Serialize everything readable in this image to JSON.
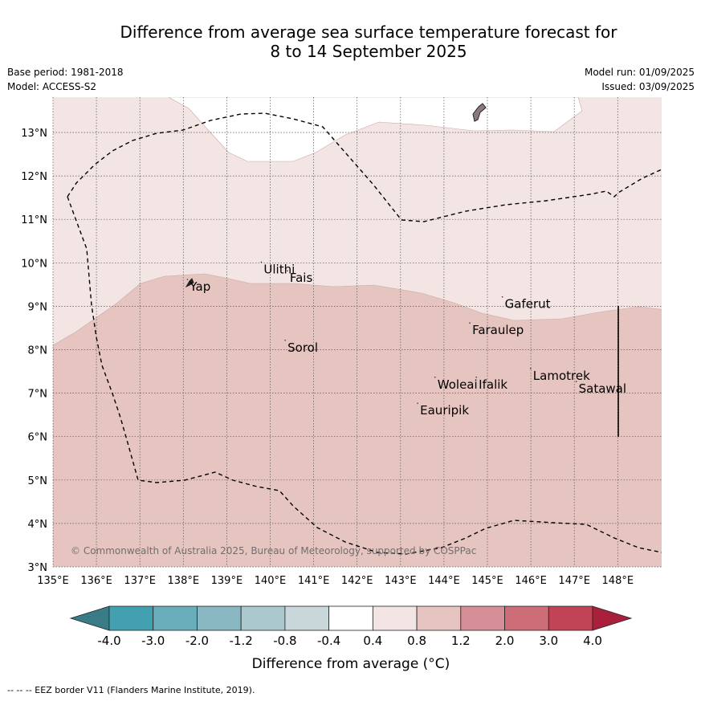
{
  "title": {
    "line1": "Difference from average sea surface temperature forecast for",
    "line2": "8 to 14 September 2025"
  },
  "meta": {
    "base_period": "Base period: 1981-2018",
    "model": "Model: ACCESS-S2",
    "model_run": "Model run: 01/09/2025",
    "issued": "Issued: 03/09/2025"
  },
  "map": {
    "lon_range": [
      135,
      149
    ],
    "lat_range": [
      3,
      13.8
    ],
    "lon_ticks": [
      "135°E",
      "136°E",
      "137°E",
      "138°E",
      "139°E",
      "140°E",
      "141°E",
      "142°E",
      "143°E",
      "144°E",
      "145°E",
      "146°E",
      "147°E",
      "148°E"
    ],
    "lat_ticks": [
      "3°N",
      "4°N",
      "5°N",
      "6°N",
      "7°N",
      "8°N",
      "9°N",
      "10°N",
      "11°N",
      "12°N",
      "13°N"
    ],
    "grid": true,
    "copyright": "© Commonwealth of Australia 2025, Bureau of Meteorology, supported by COSPPac",
    "places": [
      {
        "name": "Ulithi",
        "lon": 139.85,
        "lat": 9.85
      },
      {
        "name": "Fais",
        "lon": 140.45,
        "lat": 9.65
      },
      {
        "name": "Yap",
        "lon": 138.15,
        "lat": 9.45
      },
      {
        "name": "Gaferut",
        "lon": 145.4,
        "lat": 9.05
      },
      {
        "name": "Faraulep",
        "lon": 144.65,
        "lat": 8.45
      },
      {
        "name": "Sorol",
        "lon": 140.4,
        "lat": 8.05
      },
      {
        "name": "Lamotrek",
        "lon": 146.05,
        "lat": 7.4
      },
      {
        "name": "Woleai",
        "lon": 143.85,
        "lat": 7.2
      },
      {
        "name": "Ifalik",
        "lon": 144.8,
        "lat": 7.2
      },
      {
        "name": "Satawal",
        "lon": 147.1,
        "lat": 7.1
      },
      {
        "name": "Eauripik",
        "lon": 143.45,
        "lat": 6.6
      }
    ]
  },
  "colorbar": {
    "labels": [
      "-4.0",
      "-3.0",
      "-2.0",
      "-1.2",
      "-0.8",
      "-0.4",
      "0.4",
      "0.8",
      "1.2",
      "2.0",
      "3.0",
      "4.0"
    ],
    "colors": [
      "#43a0b1",
      "#6aaebc",
      "#89b8c3",
      "#aac8ce",
      "#c9d6da",
      "#ffffff",
      "#f3e5e3",
      "#e6c5c0",
      "#d68f96",
      "#cc6d78",
      "#c04456"
    ],
    "under_color": "#3a7b88",
    "over_color": "#a8203b",
    "label": "Difference from average (°C)"
  },
  "field_colors": {
    "band_0_4_to_0_8": "#f3e5e3",
    "band_0_8_to_1_2": "#e6c5c0"
  },
  "footnote": "--  --  -- EEZ border V11 (Flanders Marine Institute, 2019)."
}
